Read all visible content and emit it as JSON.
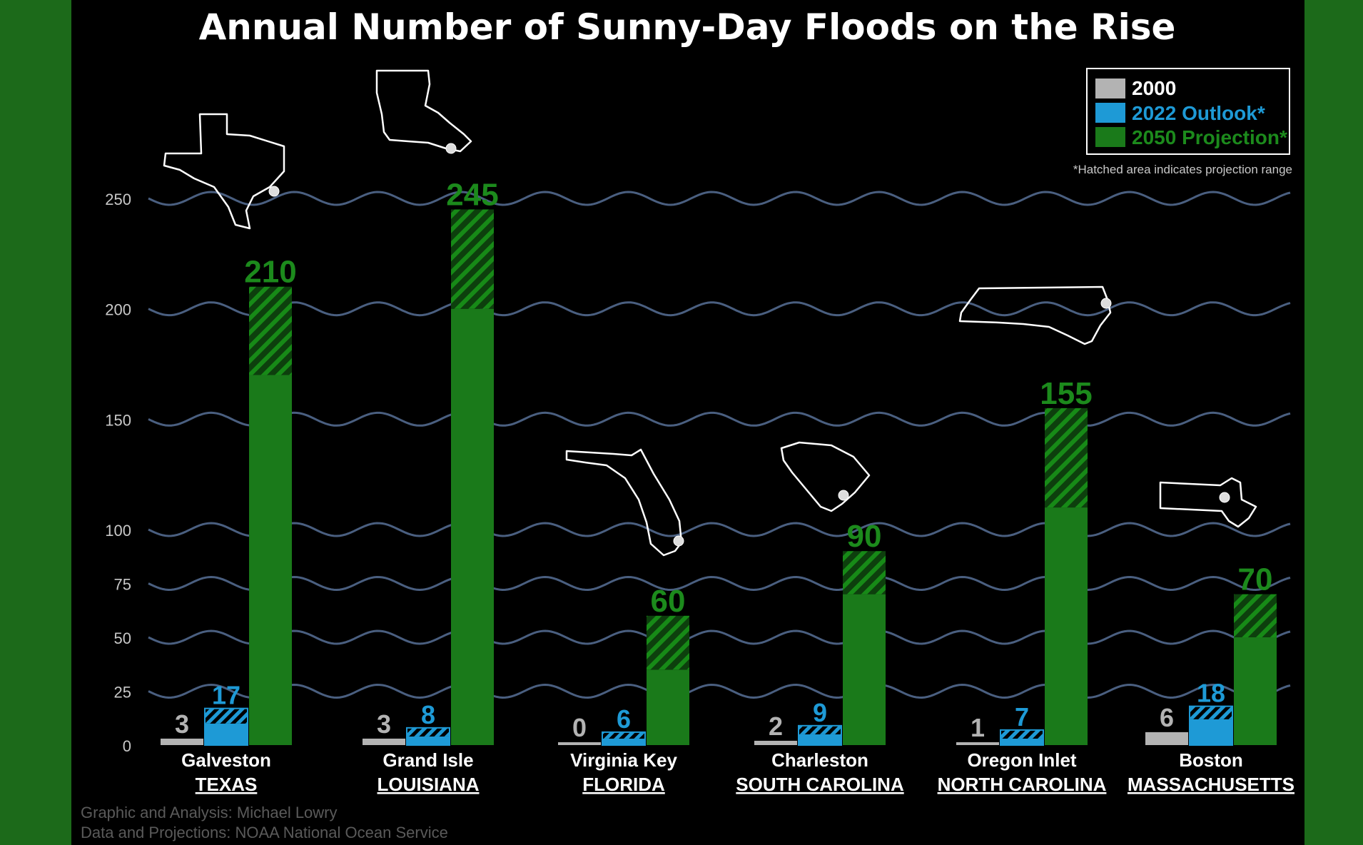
{
  "chart_data": {
    "type": "bar",
    "title": "Annual Number of Sunny-Day Floods on the Rise",
    "categories": [
      {
        "city": "Galveston",
        "state": "TEXAS"
      },
      {
        "city": "Grand Isle",
        "state": "LOUISIANA"
      },
      {
        "city": "Virginia Key",
        "state": "FLORIDA"
      },
      {
        "city": "Charleston",
        "state": "SOUTH CAROLINA"
      },
      {
        "city": "Oregon Inlet",
        "state": "NORTH CAROLINA"
      },
      {
        "city": "Boston",
        "state": "MASSACHUSETTS"
      }
    ],
    "series": [
      {
        "name": "2000",
        "color": "#b3b3b3",
        "values": [
          3,
          3,
          0,
          2,
          1,
          6
        ],
        "labels": [
          "3",
          "3",
          "0",
          "2",
          "1",
          "6"
        ],
        "range_low": [
          3,
          3,
          0,
          2,
          1,
          6
        ]
      },
      {
        "name": "2022 Outlook*",
        "color": "#1e9ad6",
        "values": [
          17,
          8,
          6,
          9,
          7,
          18
        ],
        "labels": [
          "17",
          "8",
          "6",
          "9",
          "7",
          "18"
        ],
        "range_low": [
          10,
          4,
          3,
          5,
          3,
          12
        ]
      },
      {
        "name": "2050 Projection*",
        "color": "#1a7a1a",
        "values": [
          210,
          245,
          60,
          90,
          155,
          70
        ],
        "labels": [
          "210",
          "245",
          "60",
          "90",
          "155",
          "70"
        ],
        "range_low": [
          170,
          200,
          35,
          70,
          110,
          50
        ]
      }
    ],
    "yticks": [
      "0",
      "25",
      "50",
      "75",
      "100",
      "150",
      "200",
      "250"
    ],
    "ytick_values": [
      0,
      25,
      50,
      75,
      100,
      150,
      200,
      250
    ],
    "ylim": [
      0,
      250
    ],
    "y_scale": "piecewise-linear: 0-100 step 25, 100-250 step 50",
    "legend_note": "*Hatched area indicates projection range",
    "grid": "wavy horizontal lines",
    "legend_position": "top-right",
    "credits": [
      "Graphic and Analysis: Michael Lowry",
      "Data and Projections: NOAA National Ocean Service"
    ],
    "icons": [
      "texas-map-icon",
      "louisiana-map-icon",
      "florida-map-icon",
      "south-carolina-map-icon",
      "north-carolina-map-icon",
      "massachusetts-map-icon"
    ]
  }
}
